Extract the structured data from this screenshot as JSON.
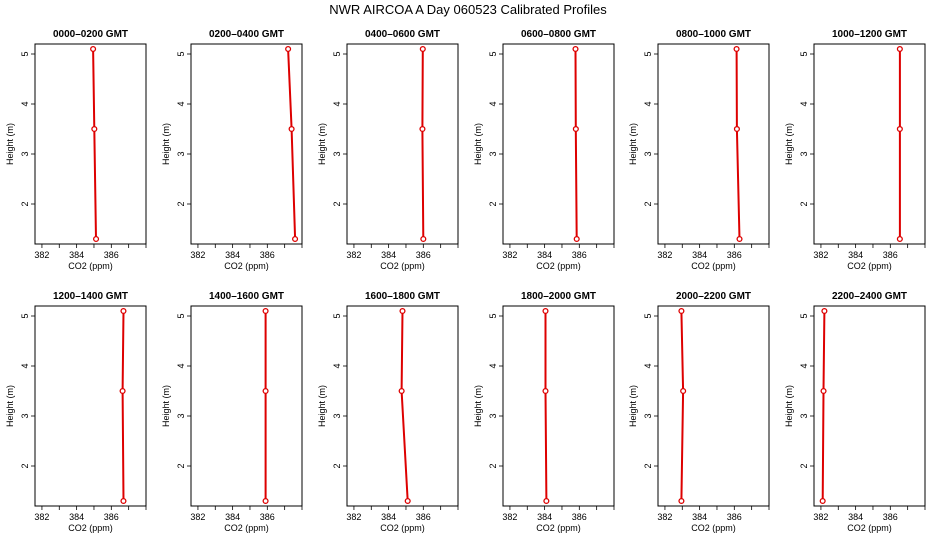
{
  "title": "NWR AIRCOA A  Day 060523  Calibrated Profiles",
  "colors": {
    "profile": "#dd0000",
    "axis": "#000000"
  },
  "chart_data": [
    {
      "type": "line",
      "title": "0000–0200 GMT",
      "xlabel": "CO2 (ppm)",
      "ylabel": "Height (m)",
      "xlim": [
        381.6,
        388.0
      ],
      "ylim": [
        1.2,
        5.2
      ],
      "xticks": [
        "382",
        "384",
        "386"
      ],
      "yticks": [
        "2",
        "3",
        "4",
        "5"
      ],
      "x": [
        385.12,
        385.02,
        384.95
      ],
      "y": [
        1.3,
        3.5,
        5.1
      ]
    },
    {
      "type": "line",
      "title": "0200–0400 GMT",
      "xlabel": "CO2 (ppm)",
      "ylabel": "Height (m)",
      "xlim": [
        381.6,
        388.0
      ],
      "ylim": [
        1.2,
        5.2
      ],
      "xticks": [
        "382",
        "384",
        "386"
      ],
      "yticks": [
        "2",
        "3",
        "4",
        "5"
      ],
      "x": [
        387.6,
        387.4,
        387.2
      ],
      "y": [
        1.3,
        3.5,
        5.1
      ]
    },
    {
      "type": "line",
      "title": "0400–0600 GMT",
      "xlabel": "CO2 (ppm)",
      "ylabel": "Height (m)",
      "xlim": [
        381.6,
        388.0
      ],
      "ylim": [
        1.2,
        5.2
      ],
      "xticks": [
        "382",
        "384",
        "386"
      ],
      "yticks": [
        "2",
        "3",
        "4",
        "5"
      ],
      "x": [
        386.0,
        385.95,
        385.97
      ],
      "y": [
        1.3,
        3.5,
        5.1
      ]
    },
    {
      "type": "line",
      "title": "0600–0800 GMT",
      "xlabel": "CO2 (ppm)",
      "ylabel": "Height (m)",
      "xlim": [
        381.6,
        388.0
      ],
      "ylim": [
        1.2,
        5.2
      ],
      "xticks": [
        "382",
        "384",
        "386"
      ],
      "yticks": [
        "2",
        "3",
        "4",
        "5"
      ],
      "x": [
        385.85,
        385.8,
        385.78
      ],
      "y": [
        1.3,
        3.5,
        5.1
      ]
    },
    {
      "type": "line",
      "title": "0800–1000 GMT",
      "xlabel": "CO2 (ppm)",
      "ylabel": "Height (m)",
      "xlim": [
        381.6,
        388.0
      ],
      "ylim": [
        1.2,
        5.2
      ],
      "xticks": [
        "382",
        "384",
        "386"
      ],
      "yticks": [
        "2",
        "3",
        "4",
        "5"
      ],
      "x": [
        386.3,
        386.15,
        386.13
      ],
      "y": [
        1.3,
        3.5,
        5.1
      ]
    },
    {
      "type": "line",
      "title": "1000–1200 GMT",
      "xlabel": "CO2 (ppm)",
      "ylabel": "Height (m)",
      "xlim": [
        381.6,
        388.0
      ],
      "ylim": [
        1.2,
        5.2
      ],
      "xticks": [
        "382",
        "384",
        "386"
      ],
      "yticks": [
        "2",
        "3",
        "4",
        "5"
      ],
      "x": [
        386.55,
        386.55,
        386.55
      ],
      "y": [
        1.3,
        3.5,
        5.1
      ]
    },
    {
      "type": "line",
      "title": "1200–1400 GMT",
      "xlabel": "CO2 (ppm)",
      "ylabel": "Height (m)",
      "xlim": [
        381.6,
        388.0
      ],
      "ylim": [
        1.2,
        5.2
      ],
      "xticks": [
        "382",
        "384",
        "386"
      ],
      "yticks": [
        "2",
        "3",
        "4",
        "5"
      ],
      "x": [
        386.7,
        386.65,
        386.7
      ],
      "y": [
        1.3,
        3.5,
        5.1
      ]
    },
    {
      "type": "line",
      "title": "1400–1600 GMT",
      "xlabel": "CO2 (ppm)",
      "ylabel": "Height (m)",
      "xlim": [
        381.6,
        388.0
      ],
      "ylim": [
        1.2,
        5.2
      ],
      "xticks": [
        "382",
        "384",
        "386"
      ],
      "yticks": [
        "2",
        "3",
        "4",
        "5"
      ],
      "x": [
        385.9,
        385.9,
        385.9
      ],
      "y": [
        1.3,
        3.5,
        5.1
      ]
    },
    {
      "type": "line",
      "title": "1600–1800 GMT",
      "xlabel": "CO2 (ppm)",
      "ylabel": "Height (m)",
      "xlim": [
        381.6,
        388.0
      ],
      "ylim": [
        1.2,
        5.2
      ],
      "xticks": [
        "382",
        "384",
        "386"
      ],
      "yticks": [
        "2",
        "3",
        "4",
        "5"
      ],
      "x": [
        385.1,
        384.75,
        384.8
      ],
      "y": [
        1.3,
        3.5,
        5.1
      ]
    },
    {
      "type": "line",
      "title": "1800–2000 GMT",
      "xlabel": "CO2 (ppm)",
      "ylabel": "Height (m)",
      "xlim": [
        381.6,
        388.0
      ],
      "ylim": [
        1.2,
        5.2
      ],
      "xticks": [
        "382",
        "384",
        "386"
      ],
      "yticks": [
        "2",
        "3",
        "4",
        "5"
      ],
      "x": [
        384.1,
        384.05,
        384.05
      ],
      "y": [
        1.3,
        3.5,
        5.1
      ]
    },
    {
      "type": "line",
      "title": "2000–2200 GMT",
      "xlabel": "CO2 (ppm)",
      "ylabel": "Height (m)",
      "xlim": [
        381.6,
        388.0
      ],
      "ylim": [
        1.2,
        5.2
      ],
      "xticks": [
        "382",
        "384",
        "386"
      ],
      "yticks": [
        "2",
        "3",
        "4",
        "5"
      ],
      "x": [
        382.95,
        383.05,
        382.95
      ],
      "y": [
        1.3,
        3.5,
        5.1
      ]
    },
    {
      "type": "line",
      "title": "2200–2400 GMT",
      "xlabel": "CO2 (ppm)",
      "ylabel": "Height (m)",
      "xlim": [
        381.6,
        388.0
      ],
      "ylim": [
        1.2,
        5.2
      ],
      "xticks": [
        "382",
        "384",
        "386"
      ],
      "yticks": [
        "2",
        "3",
        "4",
        "5"
      ],
      "x": [
        382.1,
        382.15,
        382.2
      ],
      "y": [
        1.3,
        3.5,
        5.1
      ]
    }
  ]
}
